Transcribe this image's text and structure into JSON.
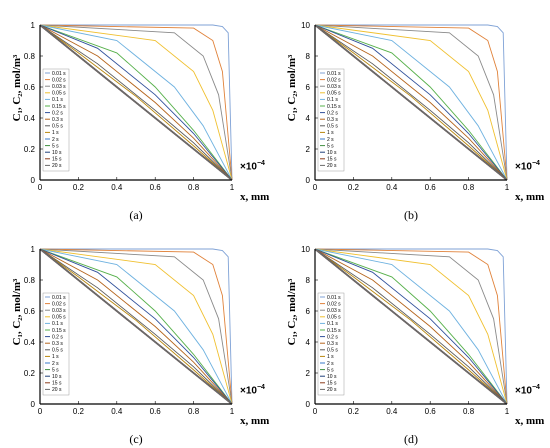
{
  "figure": {
    "captions": [
      "(a)",
      "(b)",
      "(c)",
      "(d)"
    ],
    "y_axis_label": "C₁, C₂, mol/m³",
    "x_axis_label": "x, mm",
    "x_multiplier": "×10",
    "x_multiplier_exp": "−4"
  },
  "legend_labels": [
    "0.01 s",
    "0.02 s",
    "0.03 s",
    "0.05 s",
    "0.1 s",
    "0.15 s",
    "0.2 s",
    "0.3 s",
    "0.5 s",
    "1 s",
    "2 s",
    "5 s",
    "10 s",
    "15 s",
    "20 s"
  ],
  "colors": [
    "#7fa2d6",
    "#e0823a",
    "#8a8a8a",
    "#f0c030",
    "#6fb2e0",
    "#56b04a",
    "#2f4f9a",
    "#b5651d",
    "#5a5a5a",
    "#b8860b",
    "#3a78c8",
    "#3f8f3f",
    "#1f3f7a",
    "#8b3a1a",
    "#6a6a6a"
  ],
  "chart_data": [
    {
      "type": "line",
      "panel": "(a)",
      "title": "",
      "xlabel": "x, mm",
      "ylabel": "C₁, C₂, mol/m³",
      "x_multiplier": "×10⁻⁴",
      "xlim": [
        0,
        1
      ],
      "ylim": [
        0,
        1
      ],
      "xticks": [
        "0",
        "0.2",
        "0.4",
        "0.6",
        "0.8",
        "1"
      ],
      "yticks": [
        "0",
        "0.2",
        "0.4",
        "0.6",
        "0.8",
        "1"
      ],
      "legend_position": "lower-left",
      "series": [
        {
          "name": "0.01 s",
          "x": [
            0,
            0.9,
            0.95,
            0.98,
            1
          ],
          "y": [
            1,
            1,
            0.99,
            0.95,
            0
          ]
        },
        {
          "name": "0.02 s",
          "x": [
            0,
            0.8,
            0.9,
            0.95,
            1
          ],
          "y": [
            1,
            0.98,
            0.9,
            0.7,
            0
          ]
        },
        {
          "name": "0.03 s",
          "x": [
            0,
            0.7,
            0.85,
            0.93,
            1
          ],
          "y": [
            1,
            0.95,
            0.8,
            0.55,
            0
          ]
        },
        {
          "name": "0.05 s",
          "x": [
            0,
            0.6,
            0.8,
            0.9,
            1
          ],
          "y": [
            1,
            0.9,
            0.7,
            0.45,
            0
          ]
        },
        {
          "name": "0.1 s",
          "x": [
            0,
            0.4,
            0.7,
            0.85,
            1
          ],
          "y": [
            1,
            0.9,
            0.6,
            0.35,
            0
          ]
        },
        {
          "name": "0.15 s",
          "x": [
            0,
            0.4,
            0.6,
            0.8,
            1
          ],
          "y": [
            1,
            0.82,
            0.6,
            0.32,
            0
          ]
        },
        {
          "name": "0.2 s",
          "x": [
            0,
            0.3,
            0.6,
            0.8,
            1
          ],
          "y": [
            1,
            0.85,
            0.55,
            0.3,
            0
          ]
        },
        {
          "name": "0.3 s",
          "x": [
            0,
            0.3,
            0.6,
            0.8,
            1
          ],
          "y": [
            1,
            0.8,
            0.5,
            0.27,
            0
          ]
        },
        {
          "name": "0.5 s",
          "x": [
            0,
            0.3,
            0.6,
            0.8,
            1
          ],
          "y": [
            1,
            0.75,
            0.45,
            0.24,
            0
          ]
        },
        {
          "name": "1 s",
          "x": [
            0,
            0.2,
            0.5,
            0.8,
            1
          ],
          "y": [
            1,
            0.82,
            0.54,
            0.22,
            0
          ]
        },
        {
          "name": "2 s",
          "x": [
            0,
            0.2,
            0.5,
            0.8,
            1
          ],
          "y": [
            1,
            0.8,
            0.5,
            0.2,
            0
          ]
        },
        {
          "name": "5 s",
          "x": [
            0,
            0.5,
            1
          ],
          "y": [
            1,
            0.5,
            0
          ]
        },
        {
          "name": "10 s",
          "x": [
            0,
            0.5,
            1
          ],
          "y": [
            1,
            0.5,
            0
          ]
        },
        {
          "name": "15 s",
          "x": [
            0,
            0.5,
            1
          ],
          "y": [
            1,
            0.5,
            0
          ]
        },
        {
          "name": "20 s",
          "x": [
            0,
            0.5,
            1
          ],
          "y": [
            1,
            0.5,
            0
          ]
        }
      ]
    },
    {
      "type": "line",
      "panel": "(b)",
      "title": "",
      "xlabel": "x, mm",
      "ylabel": "C₁, C₂, mol/m³",
      "x_multiplier": "×10⁻⁴",
      "xlim": [
        0,
        1
      ],
      "ylim": [
        0,
        10
      ],
      "xticks": [
        "0",
        "0.2",
        "0.4",
        "0.6",
        "0.8",
        "1"
      ],
      "yticks": [
        "0",
        "2",
        "4",
        "6",
        "8",
        "10"
      ],
      "legend_position": "lower-left",
      "series": [
        {
          "name": "0.01 s",
          "x": [
            0,
            0.9,
            0.95,
            0.98,
            1
          ],
          "y": [
            10,
            10,
            9.9,
            9.5,
            0
          ]
        },
        {
          "name": "0.02 s",
          "x": [
            0,
            0.8,
            0.9,
            0.95,
            1
          ],
          "y": [
            10,
            9.8,
            9,
            7,
            0
          ]
        },
        {
          "name": "0.03 s",
          "x": [
            0,
            0.7,
            0.85,
            0.93,
            1
          ],
          "y": [
            10,
            9.5,
            8,
            5.5,
            0
          ]
        },
        {
          "name": "0.05 s",
          "x": [
            0,
            0.6,
            0.8,
            0.9,
            1
          ],
          "y": [
            10,
            9,
            7,
            4.5,
            0
          ]
        },
        {
          "name": "0.1 s",
          "x": [
            0,
            0.4,
            0.7,
            0.85,
            1
          ],
          "y": [
            10,
            9,
            6,
            3.5,
            0
          ]
        },
        {
          "name": "0.15 s",
          "x": [
            0,
            0.4,
            0.6,
            0.8,
            1
          ],
          "y": [
            10,
            8.2,
            6,
            3.2,
            0
          ]
        },
        {
          "name": "0.2 s",
          "x": [
            0,
            0.3,
            0.6,
            0.8,
            1
          ],
          "y": [
            10,
            8.5,
            5.5,
            3,
            0
          ]
        },
        {
          "name": "0.3 s",
          "x": [
            0,
            0.3,
            0.6,
            0.8,
            1
          ],
          "y": [
            10,
            8,
            5,
            2.7,
            0
          ]
        },
        {
          "name": "0.5 s",
          "x": [
            0,
            0.3,
            0.6,
            0.8,
            1
          ],
          "y": [
            10,
            7.5,
            4.5,
            2.4,
            0
          ]
        },
        {
          "name": "1 s",
          "x": [
            0,
            0.2,
            0.5,
            0.8,
            1
          ],
          "y": [
            10,
            8.2,
            5.4,
            2.2,
            0
          ]
        },
        {
          "name": "2 s",
          "x": [
            0,
            0.2,
            0.5,
            0.8,
            1
          ],
          "y": [
            10,
            8,
            5,
            2,
            0
          ]
        },
        {
          "name": "5 s",
          "x": [
            0,
            0.5,
            1
          ],
          "y": [
            10,
            5,
            0
          ]
        },
        {
          "name": "10 s",
          "x": [
            0,
            0.5,
            1
          ],
          "y": [
            10,
            5,
            0
          ]
        },
        {
          "name": "15 s",
          "x": [
            0,
            0.5,
            1
          ],
          "y": [
            10,
            5,
            0
          ]
        },
        {
          "name": "20 s",
          "x": [
            0,
            0.5,
            1
          ],
          "y": [
            10,
            5,
            0
          ]
        }
      ]
    },
    {
      "type": "line",
      "panel": "(c)",
      "title": "",
      "xlabel": "x, mm",
      "ylabel": "C₁, C₂, mol/m³",
      "x_multiplier": "×10⁻⁴",
      "xlim": [
        0,
        1
      ],
      "ylim": [
        0,
        1
      ],
      "xticks": [
        "0",
        "0.2",
        "0.4",
        "0.6",
        "0.8",
        "1"
      ],
      "yticks": [
        "0",
        "0.2",
        "0.4",
        "0.6",
        "0.8",
        "1"
      ],
      "legend_position": "lower-left",
      "series": [
        {
          "name": "0.01 s",
          "x": [
            0,
            0.9,
            0.95,
            0.98,
            1
          ],
          "y": [
            1,
            1,
            0.99,
            0.95,
            0
          ]
        },
        {
          "name": "0.02 s",
          "x": [
            0,
            0.8,
            0.9,
            0.95,
            1
          ],
          "y": [
            1,
            0.98,
            0.9,
            0.7,
            0
          ]
        },
        {
          "name": "0.03 s",
          "x": [
            0,
            0.7,
            0.85,
            0.93,
            1
          ],
          "y": [
            1,
            0.95,
            0.8,
            0.55,
            0
          ]
        },
        {
          "name": "0.05 s",
          "x": [
            0,
            0.6,
            0.8,
            0.9,
            1
          ],
          "y": [
            1,
            0.9,
            0.7,
            0.45,
            0
          ]
        },
        {
          "name": "0.1 s",
          "x": [
            0,
            0.4,
            0.7,
            0.85,
            1
          ],
          "y": [
            1,
            0.9,
            0.6,
            0.35,
            0
          ]
        },
        {
          "name": "0.15 s",
          "x": [
            0,
            0.4,
            0.6,
            0.8,
            1
          ],
          "y": [
            1,
            0.82,
            0.6,
            0.32,
            0
          ]
        },
        {
          "name": "0.2 s",
          "x": [
            0,
            0.3,
            0.6,
            0.8,
            1
          ],
          "y": [
            1,
            0.85,
            0.55,
            0.3,
            0
          ]
        },
        {
          "name": "0.3 s",
          "x": [
            0,
            0.3,
            0.6,
            0.8,
            1
          ],
          "y": [
            1,
            0.8,
            0.5,
            0.27,
            0
          ]
        },
        {
          "name": "0.5 s",
          "x": [
            0,
            0.3,
            0.6,
            0.8,
            1
          ],
          "y": [
            1,
            0.75,
            0.45,
            0.24,
            0
          ]
        },
        {
          "name": "1 s",
          "x": [
            0,
            0.2,
            0.5,
            0.8,
            1
          ],
          "y": [
            1,
            0.82,
            0.54,
            0.22,
            0
          ]
        },
        {
          "name": "2 s",
          "x": [
            0,
            0.2,
            0.5,
            0.8,
            1
          ],
          "y": [
            1,
            0.8,
            0.5,
            0.2,
            0
          ]
        },
        {
          "name": "5 s",
          "x": [
            0,
            0.5,
            1
          ],
          "y": [
            1,
            0.5,
            0
          ]
        },
        {
          "name": "10 s",
          "x": [
            0,
            0.5,
            1
          ],
          "y": [
            1,
            0.5,
            0
          ]
        },
        {
          "name": "15 s",
          "x": [
            0,
            0.5,
            1
          ],
          "y": [
            1,
            0.5,
            0
          ]
        },
        {
          "name": "20 s",
          "x": [
            0,
            0.5,
            1
          ],
          "y": [
            1,
            0.5,
            0
          ]
        }
      ]
    },
    {
      "type": "line",
      "panel": "(d)",
      "title": "",
      "xlabel": "x, mm",
      "ylabel": "C₁, C₂, mol/m³",
      "x_multiplier": "×10⁻⁴",
      "xlim": [
        0,
        1
      ],
      "ylim": [
        0,
        10
      ],
      "xticks": [
        "0",
        "0.2",
        "0.4",
        "0.6",
        "0.8",
        "1"
      ],
      "yticks": [
        "0",
        "2",
        "4",
        "6",
        "8",
        "10"
      ],
      "legend_position": "lower-left",
      "series": [
        {
          "name": "0.01 s",
          "x": [
            0,
            0.9,
            0.95,
            0.98,
            1
          ],
          "y": [
            10,
            10,
            9.9,
            9.5,
            0
          ]
        },
        {
          "name": "0.02 s",
          "x": [
            0,
            0.8,
            0.9,
            0.95,
            1
          ],
          "y": [
            10,
            9.8,
            9,
            7,
            0
          ]
        },
        {
          "name": "0.03 s",
          "x": [
            0,
            0.7,
            0.85,
            0.93,
            1
          ],
          "y": [
            10,
            9.5,
            8,
            5.5,
            0
          ]
        },
        {
          "name": "0.05 s",
          "x": [
            0,
            0.6,
            0.8,
            0.9,
            1
          ],
          "y": [
            10,
            9,
            7,
            4.5,
            0
          ]
        },
        {
          "name": "0.1 s",
          "x": [
            0,
            0.4,
            0.7,
            0.85,
            1
          ],
          "y": [
            10,
            9,
            6,
            3.5,
            0
          ]
        },
        {
          "name": "0.15 s",
          "x": [
            0,
            0.4,
            0.6,
            0.8,
            1
          ],
          "y": [
            10,
            8.2,
            6,
            3.2,
            0
          ]
        },
        {
          "name": "0.2 s",
          "x": [
            0,
            0.3,
            0.6,
            0.8,
            1
          ],
          "y": [
            10,
            8.5,
            5.5,
            3,
            0
          ]
        },
        {
          "name": "0.3 s",
          "x": [
            0,
            0.3,
            0.6,
            0.8,
            1
          ],
          "y": [
            10,
            8,
            5,
            2.7,
            0
          ]
        },
        {
          "name": "0.5 s",
          "x": [
            0,
            0.3,
            0.6,
            0.8,
            1
          ],
          "y": [
            10,
            7.5,
            4.5,
            2.4,
            0
          ]
        },
        {
          "name": "1 s",
          "x": [
            0,
            0.2,
            0.5,
            0.8,
            1
          ],
          "y": [
            10,
            8.2,
            5.4,
            2.2,
            0
          ]
        },
        {
          "name": "2 s",
          "x": [
            0,
            0.2,
            0.5,
            0.8,
            1
          ],
          "y": [
            10,
            8,
            5,
            2,
            0
          ]
        },
        {
          "name": "5 s",
          "x": [
            0,
            0.5,
            1
          ],
          "y": [
            10,
            5,
            0
          ]
        },
        {
          "name": "10 s",
          "x": [
            0,
            0.5,
            1
          ],
          "y": [
            10,
            5,
            0
          ]
        },
        {
          "name": "15 s",
          "x": [
            0,
            0.5,
            1
          ],
          "y": [
            10,
            5,
            0
          ]
        },
        {
          "name": "20 s",
          "x": [
            0,
            0.5,
            1
          ],
          "y": [
            10,
            5,
            0
          ]
        }
      ]
    }
  ]
}
